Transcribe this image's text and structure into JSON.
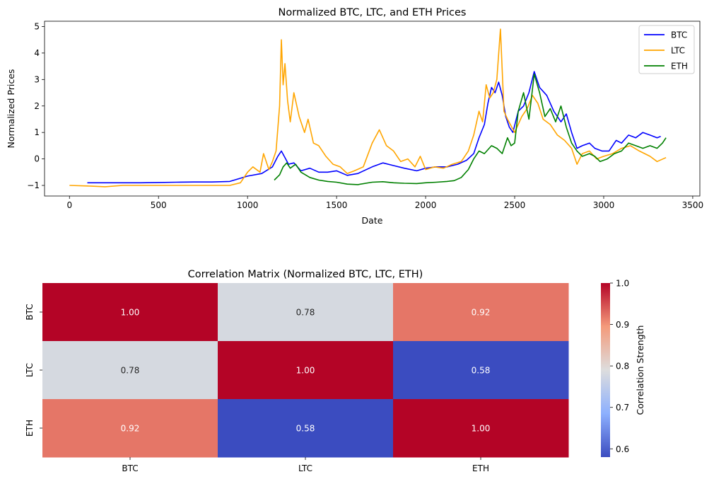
{
  "chart_data": [
    {
      "type": "line",
      "title": "Normalized BTC, LTC, and ETH Prices",
      "xlabel": "Date",
      "ylabel": "Normalized Prices",
      "xlim": [
        -140,
        3540
      ],
      "ylim": [
        -1.4,
        5.2
      ],
      "xticks": [
        0,
        500,
        1000,
        1500,
        2000,
        2500,
        3000,
        3500
      ],
      "yticks": [
        -1,
        0,
        1,
        2,
        3,
        4,
        5
      ],
      "grid": false,
      "legend_position": "upper right",
      "series": [
        {
          "name": "BTC",
          "color": "#0000ff",
          "points": [
            [
              100,
              -0.9
            ],
            [
              200,
              -0.9
            ],
            [
              300,
              -0.9
            ],
            [
              400,
              -0.9
            ],
            [
              500,
              -0.89
            ],
            [
              600,
              -0.88
            ],
            [
              700,
              -0.87
            ],
            [
              800,
              -0.87
            ],
            [
              900,
              -0.85
            ],
            [
              1000,
              -0.65
            ],
            [
              1080,
              -0.55
            ],
            [
              1140,
              -0.3
            ],
            [
              1170,
              0.1
            ],
            [
              1190,
              0.3
            ],
            [
              1210,
              0.05
            ],
            [
              1230,
              -0.2
            ],
            [
              1260,
              -0.15
            ],
            [
              1300,
              -0.45
            ],
            [
              1350,
              -0.35
            ],
            [
              1400,
              -0.5
            ],
            [
              1450,
              -0.5
            ],
            [
              1500,
              -0.45
            ],
            [
              1560,
              -0.62
            ],
            [
              1620,
              -0.55
            ],
            [
              1700,
              -0.3
            ],
            [
              1760,
              -0.15
            ],
            [
              1820,
              -0.25
            ],
            [
              1880,
              -0.35
            ],
            [
              1950,
              -0.45
            ],
            [
              2000,
              -0.35
            ],
            [
              2060,
              -0.3
            ],
            [
              2120,
              -0.3
            ],
            [
              2180,
              -0.2
            ],
            [
              2230,
              -0.05
            ],
            [
              2270,
              0.2
            ],
            [
              2300,
              0.8
            ],
            [
              2330,
              1.3
            ],
            [
              2350,
              2.1
            ],
            [
              2370,
              2.7
            ],
            [
              2390,
              2.5
            ],
            [
              2410,
              2.9
            ],
            [
              2430,
              2.4
            ],
            [
              2450,
              1.6
            ],
            [
              2470,
              1.2
            ],
            [
              2490,
              1.0
            ],
            [
              2520,
              1.8
            ],
            [
              2550,
              2.0
            ],
            [
              2580,
              2.5
            ],
            [
              2610,
              3.3
            ],
            [
              2640,
              2.7
            ],
            [
              2680,
              2.4
            ],
            [
              2720,
              1.8
            ],
            [
              2760,
              1.4
            ],
            [
              2790,
              1.7
            ],
            [
              2820,
              1.0
            ],
            [
              2850,
              0.4
            ],
            [
              2880,
              0.5
            ],
            [
              2920,
              0.6
            ],
            [
              2950,
              0.4
            ],
            [
              2990,
              0.3
            ],
            [
              3030,
              0.3
            ],
            [
              3070,
              0.7
            ],
            [
              3100,
              0.6
            ],
            [
              3140,
              0.9
            ],
            [
              3180,
              0.8
            ],
            [
              3220,
              1.0
            ],
            [
              3260,
              0.9
            ],
            [
              3300,
              0.8
            ],
            [
              3320,
              0.85
            ]
          ]
        },
        {
          "name": "LTC",
          "color": "#ffa500",
          "points": [
            [
              0,
              -1.0
            ],
            [
              100,
              -1.02
            ],
            [
              200,
              -1.05
            ],
            [
              300,
              -1.0
            ],
            [
              400,
              -1.0
            ],
            [
              500,
              -1.0
            ],
            [
              600,
              -1.0
            ],
            [
              700,
              -1.0
            ],
            [
              800,
              -1.0
            ],
            [
              900,
              -1.0
            ],
            [
              960,
              -0.9
            ],
            [
              1000,
              -0.5
            ],
            [
              1030,
              -0.3
            ],
            [
              1070,
              -0.5
            ],
            [
              1090,
              0.2
            ],
            [
              1120,
              -0.4
            ],
            [
              1140,
              -0.1
            ],
            [
              1160,
              0.3
            ],
            [
              1180,
              2.0
            ],
            [
              1190,
              4.5
            ],
            [
              1200,
              2.8
            ],
            [
              1210,
              3.6
            ],
            [
              1225,
              2.2
            ],
            [
              1240,
              1.4
            ],
            [
              1260,
              2.5
            ],
            [
              1290,
              1.6
            ],
            [
              1320,
              1.0
            ],
            [
              1340,
              1.5
            ],
            [
              1370,
              0.6
            ],
            [
              1400,
              0.5
            ],
            [
              1440,
              0.1
            ],
            [
              1480,
              -0.2
            ],
            [
              1520,
              -0.3
            ],
            [
              1560,
              -0.55
            ],
            [
              1600,
              -0.45
            ],
            [
              1650,
              -0.3
            ],
            [
              1700,
              0.6
            ],
            [
              1740,
              1.1
            ],
            [
              1780,
              0.5
            ],
            [
              1820,
              0.3
            ],
            [
              1860,
              -0.1
            ],
            [
              1900,
              0.0
            ],
            [
              1940,
              -0.3
            ],
            [
              1970,
              0.1
            ],
            [
              2000,
              -0.4
            ],
            [
              2050,
              -0.3
            ],
            [
              2100,
              -0.35
            ],
            [
              2150,
              -0.2
            ],
            [
              2200,
              -0.1
            ],
            [
              2240,
              0.3
            ],
            [
              2270,
              0.9
            ],
            [
              2300,
              1.8
            ],
            [
              2320,
              1.4
            ],
            [
              2340,
              2.8
            ],
            [
              2360,
              2.3
            ],
            [
              2380,
              2.5
            ],
            [
              2400,
              3.0
            ],
            [
              2420,
              4.9
            ],
            [
              2440,
              1.8
            ],
            [
              2460,
              1.5
            ],
            [
              2500,
              1.0
            ],
            [
              2540,
              1.6
            ],
            [
              2570,
              1.9
            ],
            [
              2600,
              2.4
            ],
            [
              2630,
              2.1
            ],
            [
              2660,
              1.5
            ],
            [
              2700,
              1.3
            ],
            [
              2740,
              0.9
            ],
            [
              2780,
              0.7
            ],
            [
              2820,
              0.4
            ],
            [
              2850,
              -0.2
            ],
            [
              2880,
              0.2
            ],
            [
              2920,
              0.3
            ],
            [
              2960,
              0.0
            ],
            [
              3000,
              0.1
            ],
            [
              3050,
              0.2
            ],
            [
              3100,
              0.4
            ],
            [
              3150,
              0.5
            ],
            [
              3200,
              0.3
            ],
            [
              3260,
              0.1
            ],
            [
              3300,
              -0.1
            ],
            [
              3350,
              0.05
            ]
          ]
        },
        {
          "name": "ETH",
          "color": "#008000",
          "points": [
            [
              1150,
              -0.8
            ],
            [
              1180,
              -0.6
            ],
            [
              1200,
              -0.3
            ],
            [
              1220,
              -0.15
            ],
            [
              1240,
              -0.35
            ],
            [
              1270,
              -0.2
            ],
            [
              1300,
              -0.5
            ],
            [
              1350,
              -0.7
            ],
            [
              1400,
              -0.8
            ],
            [
              1450,
              -0.85
            ],
            [
              1500,
              -0.88
            ],
            [
              1560,
              -0.95
            ],
            [
              1620,
              -0.97
            ],
            [
              1700,
              -0.88
            ],
            [
              1760,
              -0.86
            ],
            [
              1820,
              -0.9
            ],
            [
              1880,
              -0.92
            ],
            [
              1950,
              -0.93
            ],
            [
              2000,
              -0.9
            ],
            [
              2060,
              -0.88
            ],
            [
              2120,
              -0.85
            ],
            [
              2160,
              -0.82
            ],
            [
              2200,
              -0.7
            ],
            [
              2240,
              -0.4
            ],
            [
              2270,
              0.0
            ],
            [
              2300,
              0.3
            ],
            [
              2330,
              0.2
            ],
            [
              2370,
              0.5
            ],
            [
              2400,
              0.4
            ],
            [
              2430,
              0.2
            ],
            [
              2460,
              0.8
            ],
            [
              2480,
              0.5
            ],
            [
              2500,
              0.6
            ],
            [
              2520,
              1.8
            ],
            [
              2550,
              2.5
            ],
            [
              2580,
              1.5
            ],
            [
              2610,
              3.2
            ],
            [
              2640,
              2.5
            ],
            [
              2670,
              1.6
            ],
            [
              2700,
              1.9
            ],
            [
              2730,
              1.4
            ],
            [
              2760,
              2.0
            ],
            [
              2790,
              1.2
            ],
            [
              2820,
              0.6
            ],
            [
              2850,
              0.3
            ],
            [
              2880,
              0.1
            ],
            [
              2920,
              0.2
            ],
            [
              2950,
              0.1
            ],
            [
              2980,
              -0.1
            ],
            [
              3020,
              0.0
            ],
            [
              3060,
              0.2
            ],
            [
              3100,
              0.3
            ],
            [
              3140,
              0.6
            ],
            [
              3180,
              0.5
            ],
            [
              3220,
              0.4
            ],
            [
              3260,
              0.5
            ],
            [
              3300,
              0.4
            ],
            [
              3330,
              0.6
            ],
            [
              3350,
              0.8
            ]
          ]
        }
      ]
    },
    {
      "type": "heatmap",
      "title": "Correlation Matrix (Normalized BTC, LTC, ETH)",
      "x_categories": [
        "BTC",
        "LTC",
        "ETH"
      ],
      "y_categories": [
        "BTC",
        "LTC",
        "ETH"
      ],
      "values": [
        [
          1.0,
          0.78,
          0.92
        ],
        [
          0.78,
          1.0,
          0.58
        ],
        [
          0.92,
          0.58,
          1.0
        ]
      ],
      "value_format": ".2f",
      "colormap": "coolwarm",
      "colorbar": {
        "label": "Correlation Strength",
        "range": [
          0.58,
          1.0
        ],
        "ticks": [
          "0.6",
          "0.7",
          "0.8",
          "0.9",
          "1.0"
        ]
      }
    }
  ]
}
